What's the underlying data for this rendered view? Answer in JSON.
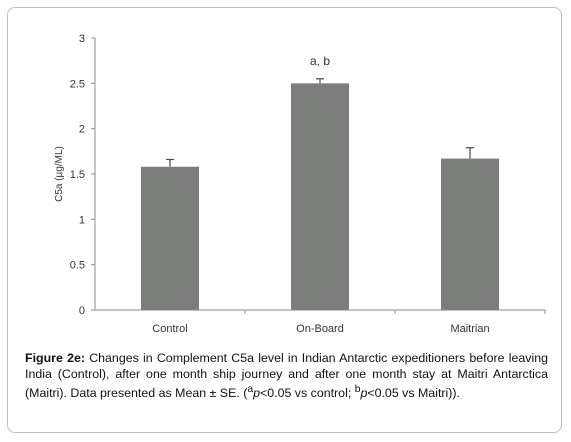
{
  "chart_data": {
    "type": "bar",
    "categories": [
      "Control",
      "On-Board",
      "Maitrian"
    ],
    "values": [
      1.58,
      2.5,
      1.67
    ],
    "errors": [
      0.08,
      0.05,
      0.12
    ],
    "ylabel": "C5a (µg/ML)",
    "ylim": [
      0,
      3
    ],
    "yticks": [
      "0",
      "0.5",
      "1",
      "1.5",
      "2",
      "2.5",
      "3"
    ],
    "grid": false,
    "bar_color": "#7b7d7b",
    "annotations": [
      {
        "category": "On-Board",
        "text": "a, b"
      }
    ]
  },
  "caption": {
    "label": "Figure 2e:",
    "text": "Changes in Complement C5a level in Indian Antarctic expeditioners before leaving India (Control), after one month ship journey and after one month stay at Maitri Antarctica (Maitri). Data presented as Mean ± SE. (",
    "sup_a": "a",
    "p_a": "p",
    "note_a": "<0.05 vs control; ",
    "sup_b": "b",
    "p_b": "p",
    "note_b": "<0.05 vs Maitri))."
  }
}
